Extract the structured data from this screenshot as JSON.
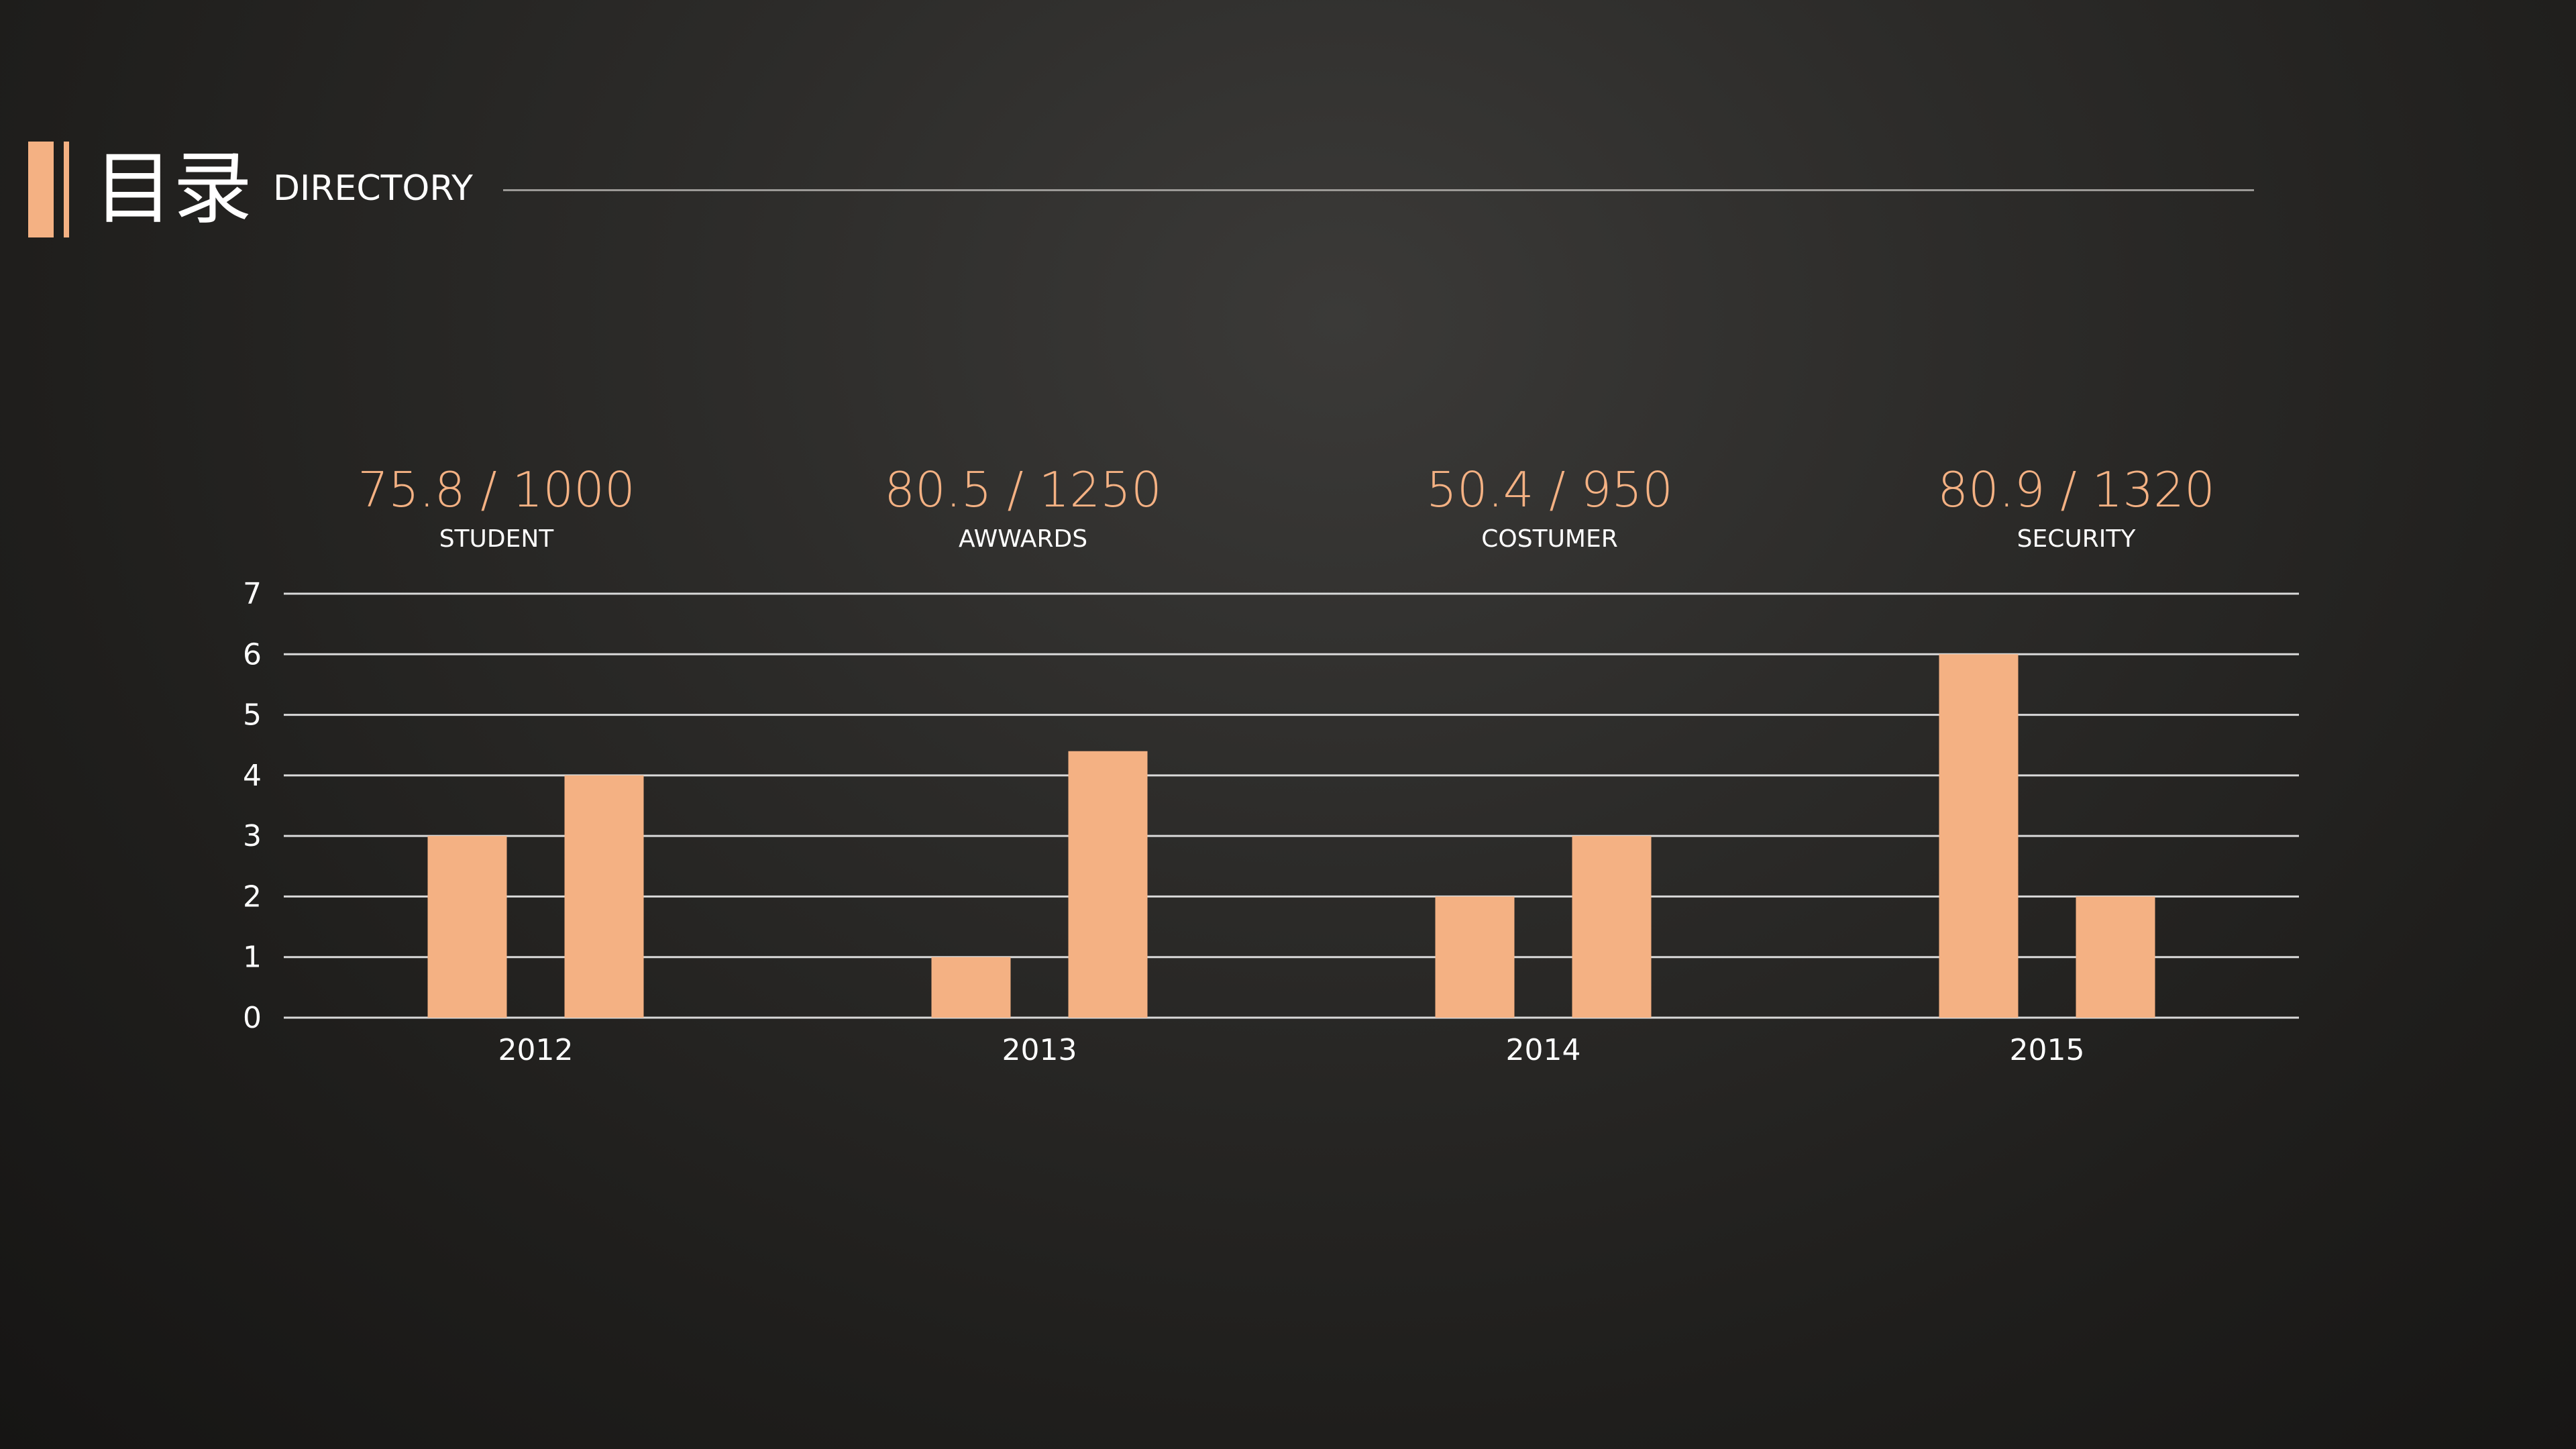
{
  "header": {
    "title_cn": "目录",
    "title_en": "DIRECTORY"
  },
  "kpis": [
    {
      "value": "75.8 / 1000",
      "label": "STUDENT"
    },
    {
      "value": "80.5 / 1250",
      "label": "AWWARDS"
    },
    {
      "value": "50.4 / 950",
      "label": "COSTUMER"
    },
    {
      "value": "80.9 / 1320",
      "label": "SECURITY"
    }
  ],
  "colors": {
    "accent": "#f4b183",
    "gridline": "#d9d9d9",
    "text": "#ffffff"
  },
  "chart_data": {
    "type": "bar",
    "categories": [
      "2012",
      "2013",
      "2014",
      "2015"
    ],
    "series": [
      {
        "values": [
          3,
          1,
          2,
          6
        ]
      },
      {
        "values": [
          4,
          4.4,
          3,
          2
        ]
      }
    ],
    "yticks": [
      0,
      1,
      2,
      3,
      4,
      5,
      6,
      7
    ],
    "ylim": [
      0,
      7
    ],
    "grid": true,
    "legend": "none"
  }
}
